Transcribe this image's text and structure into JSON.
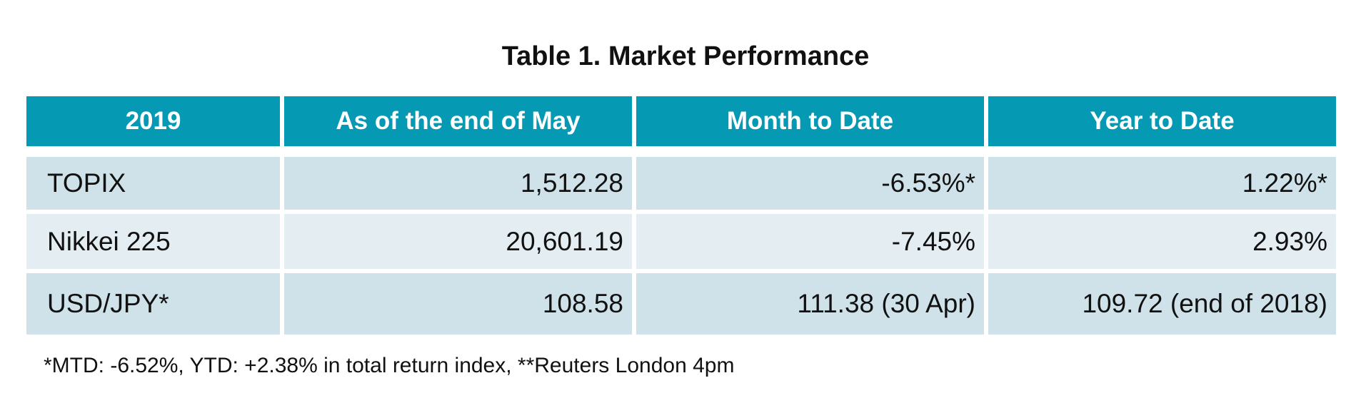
{
  "title": "Table 1. Market Performance",
  "table": {
    "header": [
      "2019",
      "As of the end of May",
      "Month to Date",
      "Year to Date"
    ],
    "rows": [
      [
        "TOPIX",
        "1,512.28",
        "-6.53%*",
        "1.22%*"
      ],
      [
        "Nikkei 225",
        "20,601.19",
        "-7.45%",
        "2.93%"
      ],
      [
        "USD/JPY*",
        "108.58",
        "111.38 (30 Apr)",
        "109.72 (end of 2018)"
      ]
    ]
  },
  "footnote": "*MTD: -6.52%, YTD: +2.38% in total return index, **Reuters London 4pm"
}
